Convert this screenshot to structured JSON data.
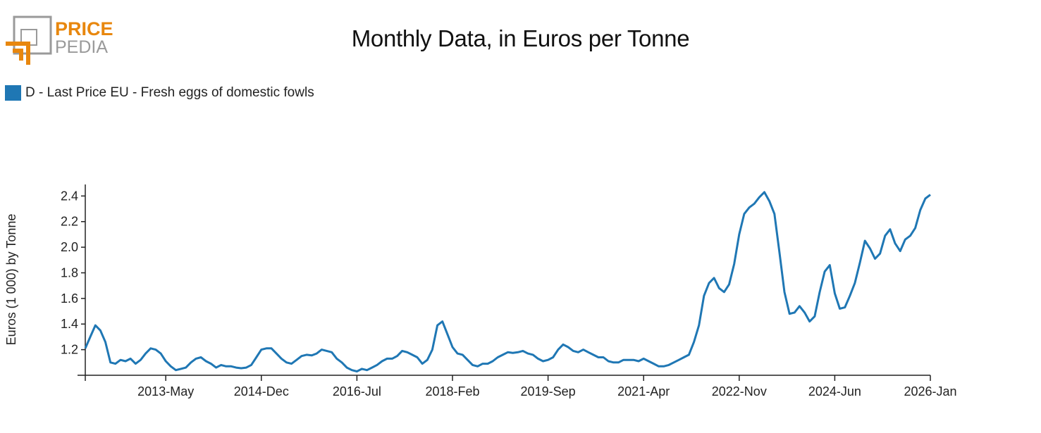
{
  "logo": {
    "word1": "PRICE",
    "word2": "PEDIA",
    "orange": "#E8870E",
    "gray": "#9a9a9a"
  },
  "title": "Monthly Data, in Euros per Tonne",
  "chart_data": {
    "type": "line",
    "title": "Monthly Data, in Euros per Tonne",
    "xlabel": "",
    "ylabel": "Euros (1 000) by Tonne",
    "x_start": "2012-Jan",
    "x_end": "2026-Jan",
    "frequency": "monthly",
    "x_ticks": [
      {
        "label": "",
        "month_index": 0
      },
      {
        "label": "2013-May",
        "month_index": 16
      },
      {
        "label": "2014-Dec",
        "month_index": 35
      },
      {
        "label": "2016-Jul",
        "month_index": 54
      },
      {
        "label": "2018-Feb",
        "month_index": 73
      },
      {
        "label": "2019-Sep",
        "month_index": 92
      },
      {
        "label": "2021-Apr",
        "month_index": 111
      },
      {
        "label": "2022-Nov",
        "month_index": 130
      },
      {
        "label": "2024-Jun",
        "month_index": 149
      },
      {
        "label": "2026-Jan",
        "month_index": 168
      }
    ],
    "y_ticks": [
      "1.2",
      "1.4",
      "1.6",
      "1.8",
      "2.0",
      "2.2",
      "2.4"
    ],
    "ylim": [
      1.0,
      2.49
    ],
    "grid": false,
    "legend_position": "top-left",
    "series": [
      {
        "name": "D - Last Price EU - Fresh eggs of domestic fowls",
        "color": "#1F77B4",
        "values": [
          1.21,
          1.3,
          1.39,
          1.35,
          1.26,
          1.1,
          1.09,
          1.12,
          1.11,
          1.13,
          1.09,
          1.12,
          1.17,
          1.21,
          1.2,
          1.17,
          1.11,
          1.07,
          1.04,
          1.05,
          1.06,
          1.1,
          1.13,
          1.14,
          1.11,
          1.09,
          1.06,
          1.08,
          1.07,
          1.07,
          1.06,
          1.055,
          1.06,
          1.08,
          1.14,
          1.2,
          1.21,
          1.21,
          1.17,
          1.13,
          1.1,
          1.09,
          1.12,
          1.15,
          1.16,
          1.155,
          1.17,
          1.2,
          1.19,
          1.18,
          1.13,
          1.1,
          1.06,
          1.04,
          1.03,
          1.05,
          1.04,
          1.06,
          1.08,
          1.11,
          1.13,
          1.13,
          1.15,
          1.19,
          1.18,
          1.16,
          1.14,
          1.09,
          1.12,
          1.2,
          1.39,
          1.42,
          1.32,
          1.22,
          1.17,
          1.16,
          1.12,
          1.08,
          1.07,
          1.09,
          1.09,
          1.11,
          1.14,
          1.16,
          1.18,
          1.175,
          1.18,
          1.19,
          1.17,
          1.16,
          1.13,
          1.11,
          1.12,
          1.14,
          1.2,
          1.24,
          1.22,
          1.19,
          1.18,
          1.2,
          1.18,
          1.16,
          1.14,
          1.14,
          1.11,
          1.1,
          1.1,
          1.12,
          1.12,
          1.12,
          1.11,
          1.13,
          1.11,
          1.09,
          1.07,
          1.07,
          1.08,
          1.1,
          1.12,
          1.14,
          1.16,
          1.26,
          1.39,
          1.62,
          1.72,
          1.76,
          1.68,
          1.65,
          1.71,
          1.87,
          2.1,
          2.26,
          2.31,
          2.34,
          2.39,
          2.43,
          2.36,
          2.26,
          1.96,
          1.65,
          1.48,
          1.49,
          1.54,
          1.49,
          1.42,
          1.46,
          1.65,
          1.81,
          1.86,
          1.64,
          1.52,
          1.53,
          1.62,
          1.72,
          1.88,
          2.05,
          1.99,
          1.91,
          1.95,
          2.09,
          2.14,
          2.03,
          1.97,
          2.06,
          2.09,
          2.15,
          2.29,
          2.38,
          2.41
        ]
      }
    ]
  }
}
